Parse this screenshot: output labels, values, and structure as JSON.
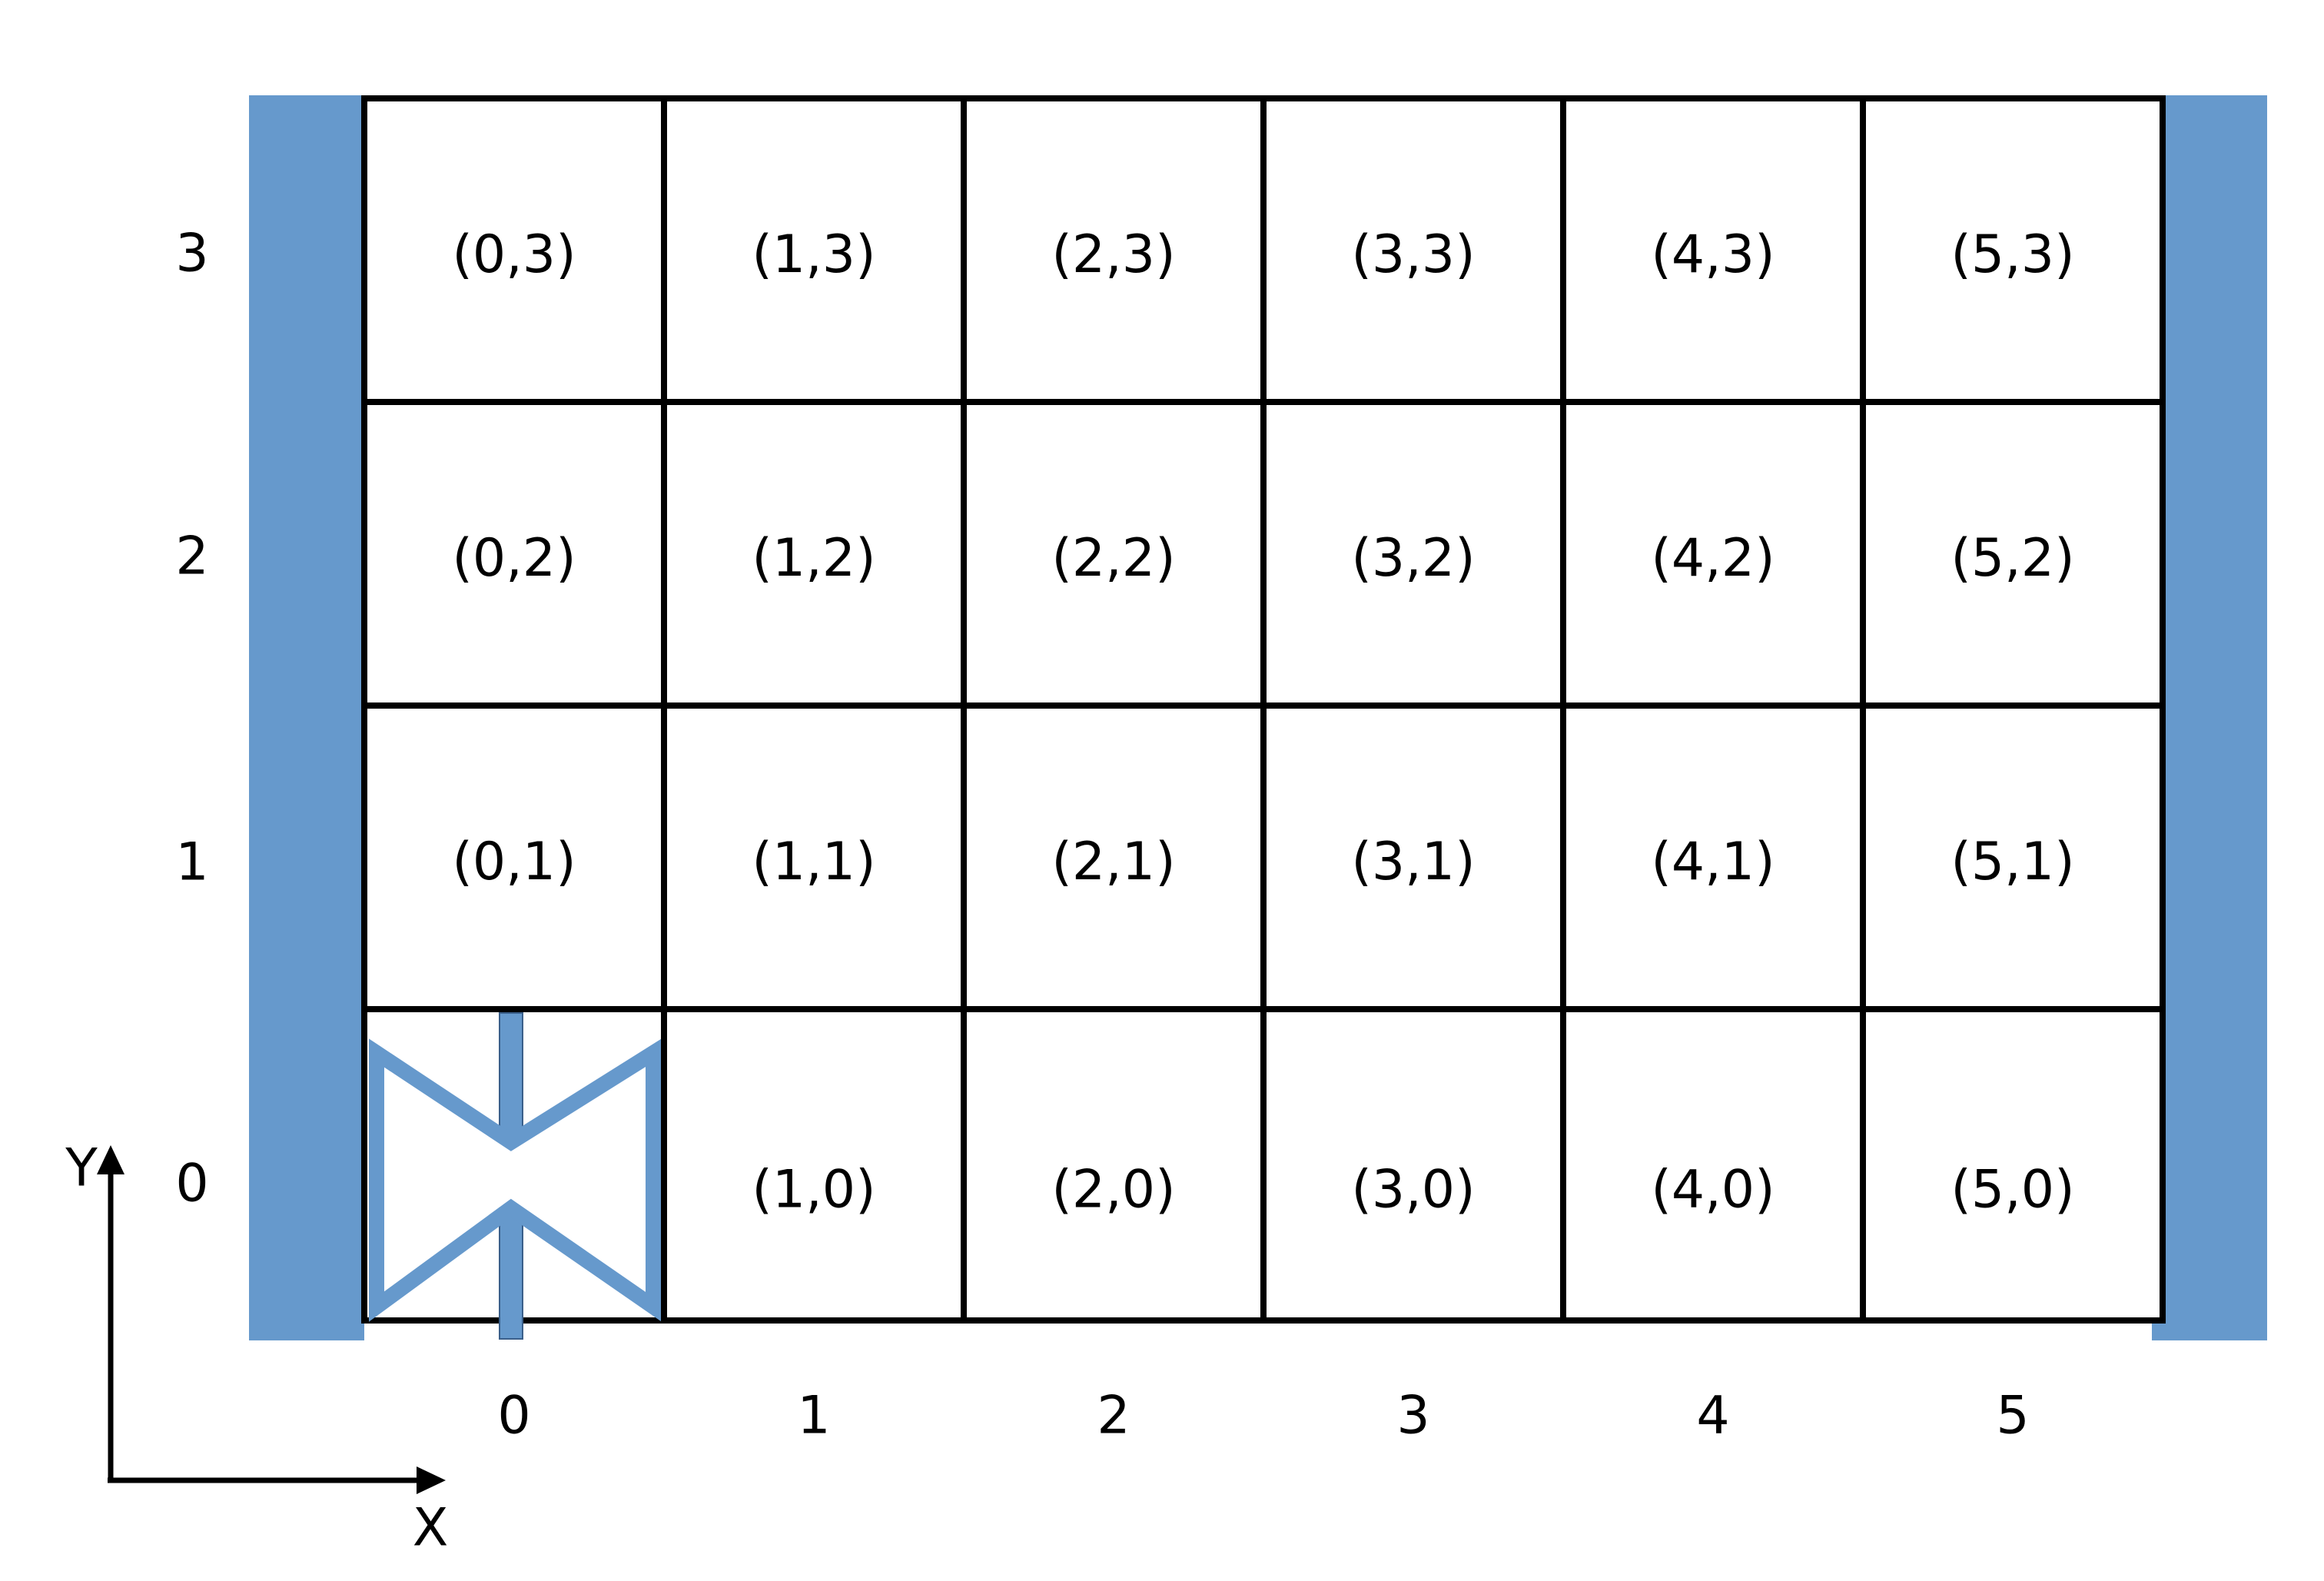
{
  "colors": {
    "wall": "#6699cc",
    "grid_line": "#000000",
    "text": "#000000"
  },
  "grid": {
    "columns": 6,
    "rows": 4,
    "cells": [
      [
        "",
        "(1,0)",
        "(2,0)",
        "(3,0)",
        "(4,0)",
        "(5,0)"
      ],
      [
        "(0,1)",
        "(1,1)",
        "(2,1)",
        "(3,1)",
        "(4,1)",
        "(5,1)"
      ],
      [
        "(0,2)",
        "(1,2)",
        "(2,2)",
        "(3,2)",
        "(4,2)",
        "(5,2)"
      ],
      [
        "(0,3)",
        "(1,3)",
        "(2,3)",
        "(3,3)",
        "(4,3)",
        "(5,3)"
      ]
    ]
  },
  "x_ticks": [
    "0",
    "1",
    "2",
    "3",
    "4",
    "5"
  ],
  "y_ticks": [
    "0",
    "1",
    "2",
    "3"
  ],
  "axis": {
    "x_label": "X",
    "y_label": "Y"
  },
  "robot": {
    "icon": "bowtie-robot-icon",
    "column": 0,
    "row": 0
  }
}
